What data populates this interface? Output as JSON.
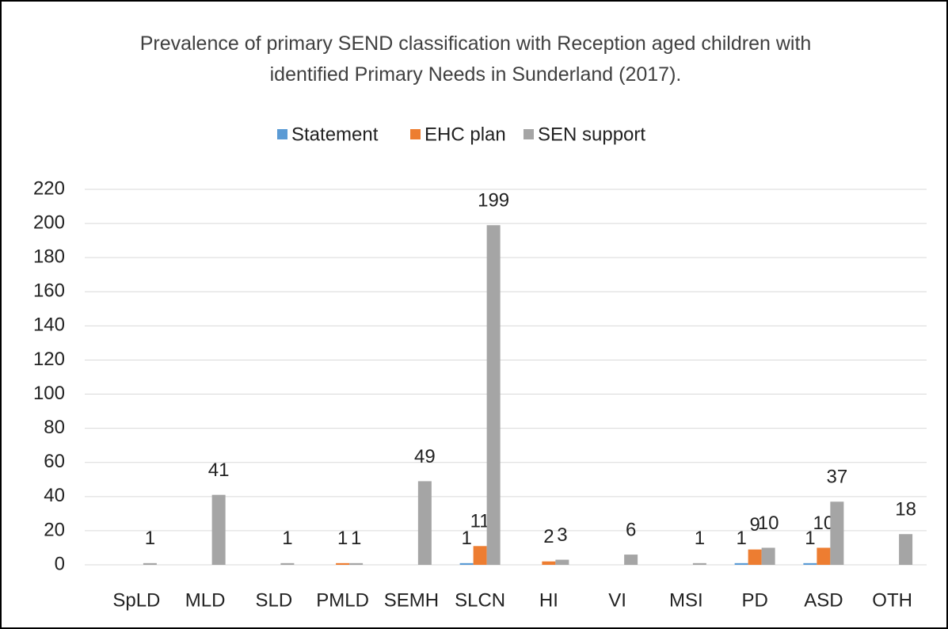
{
  "chart_data": {
    "type": "bar",
    "title": "Prevalence of primary SEND classification with Reception aged children with identified Primary Needs in Sunderland (2017).",
    "categories": [
      "SpLD",
      "MLD",
      "SLD",
      "PMLD",
      "SEMH",
      "SLCN",
      "HI",
      "VI",
      "MSI",
      "PD",
      "ASD",
      "OTH"
    ],
    "series": [
      {
        "name": "Statement",
        "color": "#5b9bd5",
        "values": [
          null,
          null,
          null,
          null,
          null,
          1,
          null,
          null,
          null,
          1,
          1,
          null
        ]
      },
      {
        "name": "EHC plan",
        "color": "#ed7d31",
        "values": [
          null,
          null,
          null,
          1,
          null,
          11,
          2,
          null,
          null,
          9,
          10,
          null
        ]
      },
      {
        "name": "SEN support",
        "color": "#a5a5a5",
        "values": [
          1,
          41,
          1,
          1,
          49,
          199,
          3,
          6,
          1,
          10,
          37,
          18
        ]
      }
    ],
    "ylim": [
      0,
      220
    ],
    "yticks": [
      0,
      20,
      40,
      60,
      80,
      100,
      120,
      140,
      160,
      180,
      200,
      220
    ],
    "grid": true,
    "legend": "top"
  }
}
